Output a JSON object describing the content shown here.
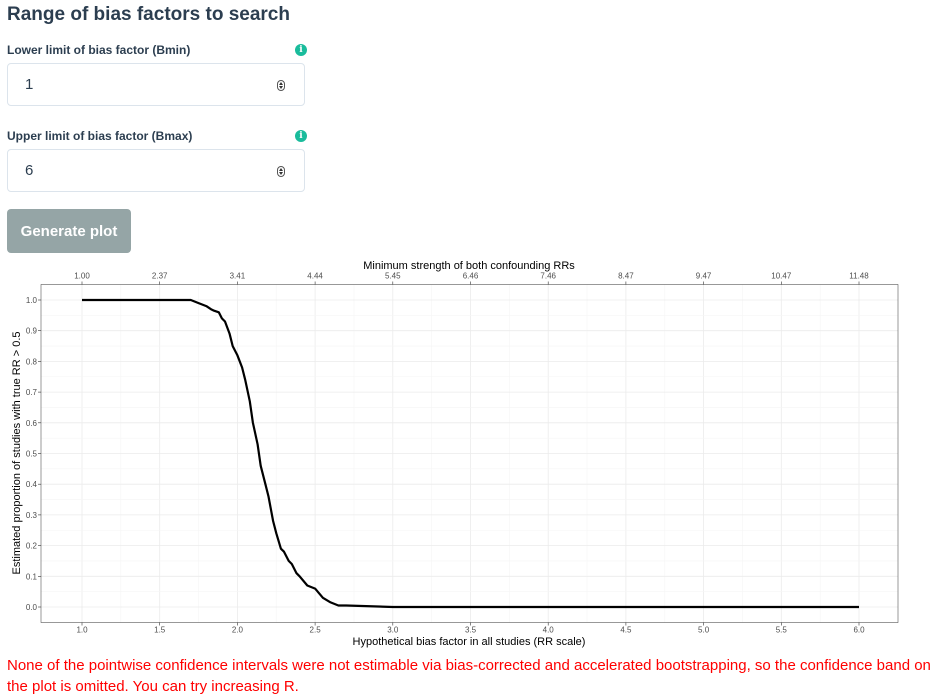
{
  "section": {
    "title": "Range of bias factors to search"
  },
  "bmin": {
    "label": "Lower limit of bias factor (Bmin)",
    "value": "1"
  },
  "bmax": {
    "label": "Upper limit of bias factor (Bmax)",
    "value": "6"
  },
  "info_icon_glyph": "i",
  "accent_color": "#1abc9c",
  "button": {
    "label": "Generate plot",
    "color": "#95a5a6"
  },
  "chart_data": {
    "type": "line",
    "title": "",
    "xlabel": "Hypothetical bias factor in all studies (RR scale)",
    "ylabel": "Estimated proportion of studies with true RR > 0.5",
    "secondary_xlabel": "Minimum strength of both confounding RRs",
    "xlim": [
      1.0,
      6.0
    ],
    "ylim": [
      0.0,
      1.0
    ],
    "x_ticks": [
      "1.0",
      "1.5",
      "2.0",
      "2.5",
      "3.0",
      "3.5",
      "4.0",
      "4.5",
      "5.0",
      "5.5",
      "6.0"
    ],
    "y_ticks": [
      "0.0",
      "0.1",
      "0.2",
      "0.3",
      "0.4",
      "0.5",
      "0.6",
      "0.7",
      "0.8",
      "0.9",
      "1.0"
    ],
    "secondary_x_ticks": [
      "1.00",
      "2.37",
      "3.41",
      "4.44",
      "5.45",
      "6.46",
      "7.46",
      "8.47",
      "9.47",
      "10.47",
      "11.48"
    ],
    "grid": true,
    "series": [
      {
        "color": "#000000",
        "x": [
          1.0,
          1.1,
          1.2,
          1.3,
          1.4,
          1.5,
          1.6,
          1.7,
          1.75,
          1.8,
          1.83,
          1.85,
          1.88,
          1.9,
          1.92,
          1.95,
          1.97,
          2.0,
          2.03,
          2.05,
          2.08,
          2.1,
          2.13,
          2.15,
          2.18,
          2.2,
          2.23,
          2.25,
          2.28,
          2.3,
          2.33,
          2.35,
          2.38,
          2.4,
          2.45,
          2.5,
          2.55,
          2.6,
          2.65,
          2.7,
          3.0,
          3.5,
          4.0,
          4.5,
          5.0,
          5.5,
          6.0
        ],
        "y": [
          1.0,
          1.0,
          1.0,
          1.0,
          1.0,
          1.0,
          1.0,
          1.0,
          0.99,
          0.98,
          0.97,
          0.965,
          0.96,
          0.94,
          0.93,
          0.89,
          0.85,
          0.82,
          0.78,
          0.74,
          0.67,
          0.6,
          0.53,
          0.46,
          0.4,
          0.36,
          0.28,
          0.24,
          0.19,
          0.18,
          0.15,
          0.14,
          0.11,
          0.1,
          0.07,
          0.06,
          0.03,
          0.015,
          0.005,
          0.005,
          0.0,
          0.0,
          0.0,
          0.0,
          0.0,
          0.0,
          0.0
        ]
      }
    ]
  },
  "warning": {
    "text": "None of the pointwise confidence intervals were not estimable via bias-corrected and accelerated bootstrapping, so the confidence band on the plot is omitted. You can try increasing R.",
    "color": "#ff0000"
  }
}
